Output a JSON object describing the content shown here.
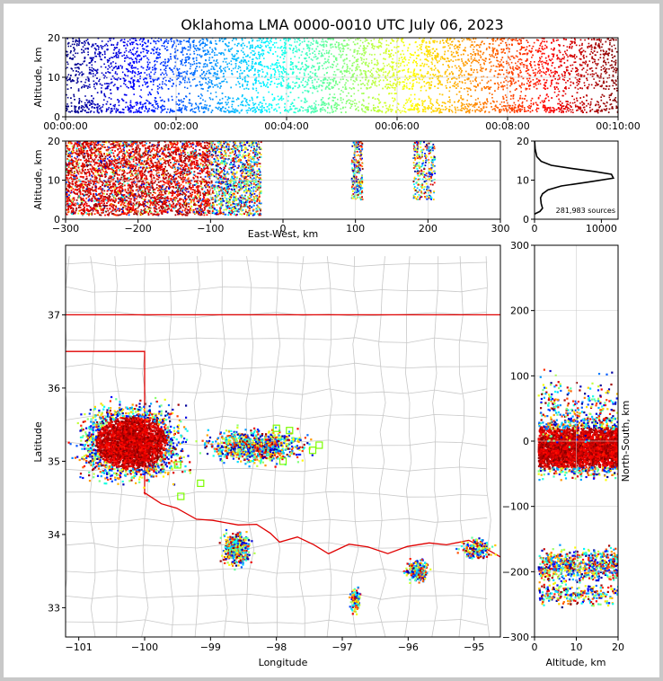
{
  "chart_data": [
    {
      "id": "time-height",
      "type": "scatter",
      "title": "Oklahoma LMA 0000-0010 UTC July 06, 2023",
      "ylabel": "Altitude, km",
      "ylim": [
        0,
        20
      ],
      "yticks": [
        "0",
        "10",
        "20"
      ],
      "xlim": [
        "00:00:00",
        "00:10:00"
      ],
      "xticks": [
        "00:00:00",
        "00:02:00",
        "00:04:00",
        "00:06:00",
        "00:08:00",
        "00:10:00"
      ],
      "color_scale": "time (blue → red)"
    },
    {
      "id": "east-west-altitude",
      "type": "scatter",
      "xlabel": "East-West, km",
      "ylabel": "Altitude, km",
      "xlim": [
        -300,
        300
      ],
      "ylim": [
        0,
        20
      ],
      "xticks": [
        "−300",
        "−200",
        "−100",
        "0",
        "100",
        "200",
        "300"
      ],
      "yticks": [
        "0",
        "10",
        "20"
      ],
      "clusters_km": [
        {
          "x_range": [
            -300,
            -100
          ],
          "alt_range": [
            1,
            20
          ],
          "note": "dense main storm"
        },
        {
          "x_range": [
            -100,
            -30
          ],
          "alt_range": [
            1,
            20
          ]
        },
        {
          "x_range": [
            95,
            110
          ],
          "alt_range": [
            5,
            20
          ]
        },
        {
          "x_range": [
            180,
            210
          ],
          "alt_range": [
            5,
            20
          ]
        }
      ]
    },
    {
      "id": "altitude-histogram",
      "type": "line",
      "xlim": [
        0,
        12500
      ],
      "ylim": [
        0,
        20
      ],
      "xticks": [
        "0",
        "10000"
      ],
      "yticks": [
        "0",
        "10",
        "20"
      ],
      "annotation": "281,983 sources",
      "profile": [
        [
          200,
          1.5
        ],
        [
          800,
          2.0
        ],
        [
          1200,
          2.8
        ],
        [
          1000,
          4.0
        ],
        [
          900,
          5.5
        ],
        [
          1200,
          6.5
        ],
        [
          2000,
          7.5
        ],
        [
          4000,
          8.5
        ],
        [
          8000,
          9.5
        ],
        [
          11800,
          10.5
        ],
        [
          11500,
          11.5
        ],
        [
          9000,
          12.2
        ],
        [
          5500,
          13.0
        ],
        [
          2500,
          13.8
        ],
        [
          1000,
          14.8
        ],
        [
          350,
          16.0
        ],
        [
          100,
          18.0
        ],
        [
          20,
          20.0
        ]
      ]
    },
    {
      "id": "plan-view",
      "type": "scatter",
      "xlabel": "Longitude",
      "ylabel": "Latitude",
      "xlim": [
        -101.2,
        -94.6
      ],
      "ylim": [
        32.6,
        37.95
      ],
      "xticks": [
        -101,
        -100,
        -99,
        -98,
        -97,
        -96,
        -95
      ],
      "yticks": [
        33,
        34,
        35,
        36,
        37
      ],
      "xtick_labels": [
        "−101",
        "−100",
        "−99",
        "−98",
        "−97",
        "−96",
        "−95"
      ],
      "ytick_labels": [
        "33",
        "34",
        "35",
        "36",
        "37"
      ],
      "clusters": [
        {
          "lon": [
            -101.2,
            -99.2
          ],
          "lat": [
            34.6,
            35.9
          ],
          "note": "main storm"
        },
        {
          "lon": [
            -99.3,
            -97.3
          ],
          "lat": [
            34.9,
            35.5
          ]
        },
        {
          "lon": [
            -98.9,
            -98.3
          ],
          "lat": [
            33.5,
            34.1
          ]
        },
        {
          "lon": [
            -96.9,
            -96.7
          ],
          "lat": [
            32.9,
            33.3
          ]
        },
        {
          "lon": [
            -96.1,
            -95.6
          ],
          "lat": [
            33.3,
            33.7
          ]
        },
        {
          "lon": [
            -95.3,
            -94.6
          ],
          "lat": [
            33.6,
            34.0
          ]
        }
      ],
      "stations": [
        [
          -99.5,
          34.95
        ],
        [
          -99.45,
          34.52
        ],
        [
          -99.15,
          34.7
        ],
        [
          -98.0,
          35.45
        ],
        [
          -97.8,
          35.42
        ],
        [
          -97.35,
          35.22
        ],
        [
          -97.45,
          35.15
        ],
        [
          -97.9,
          35.0
        ]
      ]
    },
    {
      "id": "altitude-north-south",
      "type": "scatter",
      "xlabel": "Altitude, km",
      "ylabel": "North-South, km",
      "xlim": [
        0,
        20
      ],
      "ylim": [
        -300,
        300
      ],
      "xticks": [
        "0",
        "10",
        "20"
      ],
      "yticks": [
        "−300",
        "−200",
        "−100",
        "0",
        "100",
        "200",
        "300"
      ]
    }
  ]
}
